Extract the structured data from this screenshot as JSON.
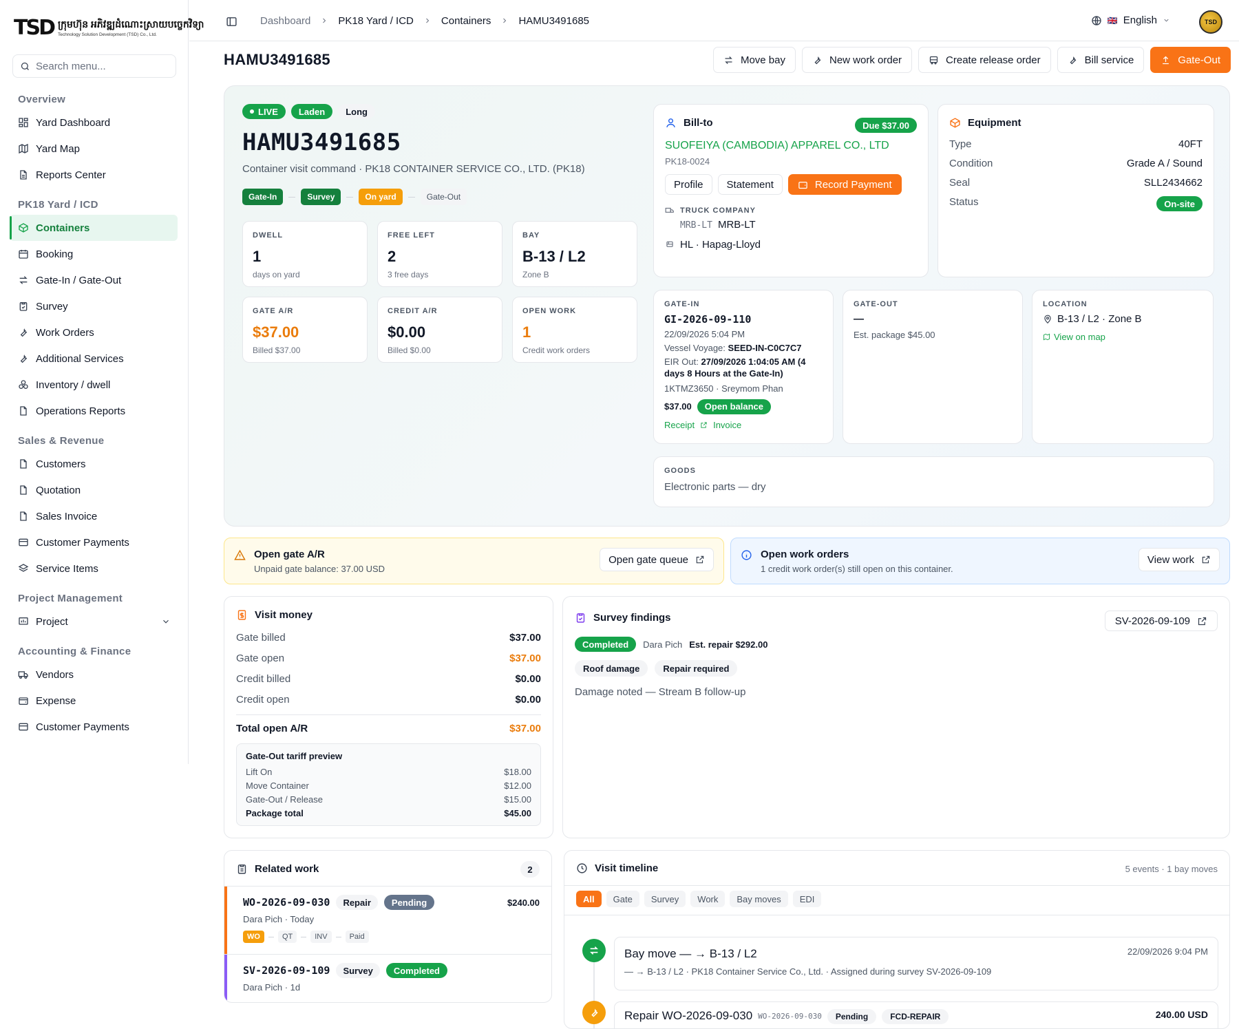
{
  "brand": {
    "logo_mark": "TSD",
    "name_kh": "ក្រុមហ៊ុន អភិវឌ្ឍដំណោះស្រាយបច្ចេកវិទ្យា",
    "name_en": "Technology Solution Development (TSD) Co., Ltd."
  },
  "search": {
    "placeholder": "Search menu..."
  },
  "sidebar": {
    "sections": [
      {
        "title": "Overview",
        "items": [
          "Yard Dashboard",
          "Yard Map",
          "Reports Center"
        ]
      },
      {
        "title": "PK18 Yard / ICD",
        "items": [
          "Containers",
          "Booking",
          "Gate-In / Gate-Out",
          "Survey",
          "Work Orders",
          "Additional Services",
          "Inventory / dwell",
          "Operations Reports"
        ]
      },
      {
        "title": "Sales & Revenue",
        "items": [
          "Customers",
          "Quotation",
          "Sales Invoice",
          "Customer Payments",
          "Service Items"
        ]
      },
      {
        "title": "Project Management",
        "items": [
          "Project"
        ]
      },
      {
        "title": "Accounting & Finance",
        "items": [
          "Vendors",
          "Expense",
          "Customer Payments"
        ]
      }
    ],
    "active": "Containers"
  },
  "breadcrumb": [
    "Dashboard",
    "PK18 Yard / ICD",
    "Containers",
    "HAMU3491685"
  ],
  "language": {
    "label": "English",
    "flag": "🇬🇧"
  },
  "avatar": {
    "text": "TSD"
  },
  "page": {
    "title": "HAMU3491685"
  },
  "actions": [
    "Move bay",
    "New work order",
    "Create release order",
    "Bill service",
    "Gate-Out"
  ],
  "hero": {
    "badges": {
      "live": "LIVE",
      "laden": "Laden",
      "long": "Long"
    },
    "container_id": "HAMU3491685",
    "subtitle": "Container visit command · PK18 CONTAINER SERVICE CO., LTD. (PK18)",
    "steps": [
      "Gate-In",
      "Survey",
      "On yard",
      "Gate-Out"
    ],
    "stats": [
      {
        "label": "DWELL",
        "value": "1",
        "sub": "days on yard"
      },
      {
        "label": "FREE LEFT",
        "value": "2",
        "sub": "3 free days"
      },
      {
        "label": "BAY",
        "value": "B-13 / L2",
        "sub": "Zone B"
      },
      {
        "label": "GATE A/R",
        "value": "$37.00",
        "sub": "Billed $37.00"
      },
      {
        "label": "CREDIT A/R",
        "value": "$0.00",
        "sub": "Billed $0.00"
      },
      {
        "label": "OPEN WORK",
        "value": "1",
        "sub": "Credit work orders"
      }
    ]
  },
  "bill_to": {
    "title": "Bill-to",
    "due": "Due $37.00",
    "company": "SUOFEIYA (CAMBODIA) APPAREL CO., LTD",
    "code": "PK18-0024",
    "buttons": [
      "Profile",
      "Statement",
      "Record Payment"
    ],
    "truck_label": "TRUCK COMPANY",
    "truck_code": "MRB-LT",
    "truck_name": "MRB-LT",
    "line": "HL · Hapag-Lloyd"
  },
  "equipment": {
    "title": "Equipment",
    "rows": [
      {
        "k": "Type",
        "v": "40FT"
      },
      {
        "k": "Condition",
        "v": "Grade A / Sound"
      },
      {
        "k": "Seal",
        "v": "SLL2434662"
      }
    ],
    "status_label": "Status",
    "status": "On-site"
  },
  "gate_in": {
    "label": "GATE-IN",
    "id": "GI-2026-09-110",
    "datetime": "22/09/2026 5:04 PM",
    "voyage_label": "Vessel Voyage:",
    "voyage": "SEED-IN-C0C7C7",
    "eir_label": "EIR Out:",
    "eir_line1": "27/09/2026 1:04:05 AM (4",
    "eir_line2": "days 8 Hours at the Gate-In)",
    "driver": "1KTMZ3650 · Sreymom Phan",
    "amount": "$37.00",
    "balance": "Open balance",
    "receipt": "Receipt",
    "invoice": "Invoice"
  },
  "gate_out": {
    "label": "GATE-OUT",
    "value": "—",
    "sub": "Est. package $45.00"
  },
  "location": {
    "label": "LOCATION",
    "value": "B-13 / L2 · Zone B",
    "link": "View on map"
  },
  "goods": {
    "label": "GOODS",
    "value": "Electronic parts — dry"
  },
  "alerts": {
    "gate": {
      "title": "Open gate A/R",
      "sub": "Unpaid gate balance: 37.00 USD",
      "button": "Open gate queue"
    },
    "work": {
      "title": "Open work orders",
      "sub": "1 credit work order(s) still open on this container.",
      "button": "View work"
    }
  },
  "visit_money": {
    "title": "Visit money",
    "rows": [
      {
        "k": "Gate billed",
        "v": "$37.00"
      },
      {
        "k": "Gate open",
        "v": "$37.00"
      },
      {
        "k": "Credit billed",
        "v": "$0.00"
      },
      {
        "k": "Credit open",
        "v": "$0.00"
      }
    ],
    "total_label": "Total open A/R",
    "total": "$37.00",
    "tariff": {
      "title": "Gate-Out tariff preview",
      "rows": [
        {
          "k": "Lift On",
          "v": "$18.00"
        },
        {
          "k": "Move Container",
          "v": "$12.00"
        },
        {
          "k": "Gate-Out / Release",
          "v": "$15.00"
        }
      ],
      "total_label": "Package total",
      "total": "$45.00"
    }
  },
  "survey": {
    "title": "Survey findings",
    "ref": "SV-2026-09-109",
    "status": "Completed",
    "surveyor": "Dara Pich",
    "estimate": "Est. repair $292.00",
    "tags": [
      "Roof damage",
      "Repair required"
    ],
    "note": "Damage noted — Stream B follow-up"
  },
  "related_work": {
    "title": "Related work",
    "count": "2",
    "items": [
      {
        "id": "WO-2026-09-030",
        "type": "Repair",
        "status": "Pending",
        "amount": "$240.00",
        "meta": "Dara Pich · Today",
        "flow": [
          "WO",
          "QT",
          "INV",
          "Paid"
        ]
      },
      {
        "id": "SV-2026-09-109",
        "type": "Survey",
        "status": "Completed",
        "meta": "Dara Pich · 1d"
      }
    ]
  },
  "timeline": {
    "title": "Visit timeline",
    "summary": "5 events · 1 bay moves",
    "filters": [
      "All",
      "Gate",
      "Survey",
      "Work",
      "Bay moves",
      "EDI"
    ],
    "events": [
      {
        "title": "Bay move — → B-13 / L2",
        "time": "22/09/2026 9:04 PM",
        "desc": "— → B-13 / L2 · PK18 Container Service Co., Ltd. · Assigned during survey SV-2026-09-109"
      },
      {
        "title": "Repair WO-2026-09-030",
        "ref": "WO-2026-09-030",
        "status": "Pending",
        "tag": "FCD-REPAIR",
        "amount": "240.00 USD"
      }
    ]
  }
}
